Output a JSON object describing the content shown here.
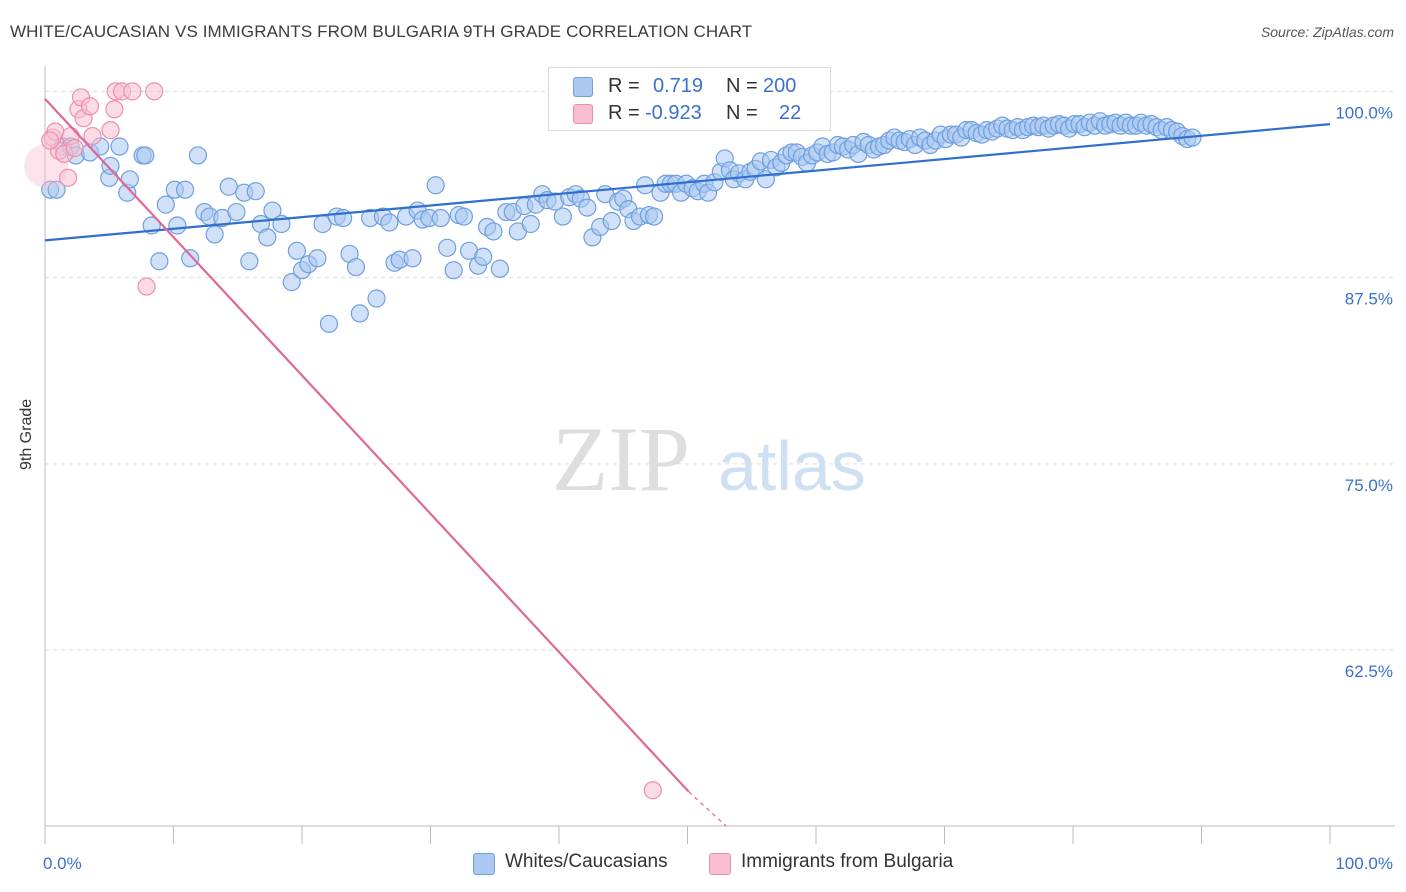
{
  "title": "WHITE/CAUCASIAN VS IMMIGRANTS FROM BULGARIA 9TH GRADE CORRELATION CHART",
  "source": "Source: ZipAtlas.com",
  "watermark": {
    "zip": "ZIP",
    "atlas": "atlas"
  },
  "colors": {
    "blue_fill": "#aac8f0",
    "blue_stroke": "#6f9fe0",
    "blue_line": "#2f6fce",
    "pink_fill": "#f8bfd2",
    "pink_stroke": "#ec8fae",
    "pink_line": "#e06896",
    "tick_label": "#3a70cc",
    "grid": "#d9d9d9"
  },
  "legend": {
    "rows": [
      {
        "r_label": "R =",
        "r_value": "0.719",
        "n_label": "N =",
        "n_value": "200",
        "color": "#aac8f0"
      },
      {
        "r_label": "R =",
        "r_value": "-0.923",
        "n_label": "N =",
        "n_value": "22",
        "color": "#f8bfd2"
      }
    ]
  },
  "bottom_legend": [
    {
      "label": "Whites/Caucasians",
      "color": "#aac8f0"
    },
    {
      "label": "Immigrants from Bulgaria",
      "color": "#f8bfd2"
    }
  ],
  "chart_data": {
    "type": "scatter",
    "title": "WHITE/CAUCASIAN VS IMMIGRANTS FROM BULGARIA 9TH GRADE CORRELATION CHART",
    "xlabel": "",
    "ylabel": "9th Grade",
    "xlim": [
      0,
      100
    ],
    "ylim": [
      50.7,
      101.3
    ],
    "x_tick_labels": [
      {
        "value": 0,
        "label": "0.0%"
      },
      {
        "value": 100,
        "label": "100.0%"
      }
    ],
    "y_tick_labels": [
      {
        "value": 100,
        "label": "100.0%"
      },
      {
        "value": 87.5,
        "label": "87.5%"
      },
      {
        "value": 75,
        "label": "75.0%"
      },
      {
        "value": 62.5,
        "label": "62.5%"
      }
    ],
    "grid": true,
    "legend_position": "top-center",
    "series": [
      {
        "name": "Whites/Caucasians",
        "color": "#aac8f0",
        "trend": {
          "x": [
            0,
            100
          ],
          "y": [
            90.0,
            97.8
          ]
        },
        "points": [
          [
            0.4,
            93.4
          ],
          [
            0.9,
            93.4
          ],
          [
            1.4,
            96.3
          ],
          [
            2.0,
            96.3
          ],
          [
            2.4,
            95.7
          ],
          [
            3.5,
            95.9
          ],
          [
            4.3,
            96.3
          ],
          [
            5.0,
            94.2
          ],
          [
            5.1,
            95.0
          ],
          [
            5.8,
            96.3
          ],
          [
            6.4,
            93.2
          ],
          [
            6.6,
            94.1
          ],
          [
            7.6,
            95.7
          ],
          [
            7.8,
            95.7
          ],
          [
            8.3,
            91.0
          ],
          [
            8.9,
            88.6
          ],
          [
            9.4,
            92.4
          ],
          [
            10.1,
            93.4
          ],
          [
            10.3,
            91.0
          ],
          [
            10.9,
            93.4
          ],
          [
            11.3,
            88.8
          ],
          [
            11.9,
            95.7
          ],
          [
            12.4,
            91.9
          ],
          [
            12.8,
            91.6
          ],
          [
            13.2,
            90.4
          ],
          [
            13.8,
            91.5
          ],
          [
            14.3,
            93.6
          ],
          [
            14.9,
            91.9
          ],
          [
            15.5,
            93.2
          ],
          [
            15.9,
            88.6
          ],
          [
            16.4,
            93.3
          ],
          [
            16.8,
            91.1
          ],
          [
            17.3,
            90.2
          ],
          [
            17.7,
            92.0
          ],
          [
            18.4,
            91.1
          ],
          [
            19.2,
            87.2
          ],
          [
            19.6,
            89.3
          ],
          [
            20.0,
            88.0
          ],
          [
            20.5,
            88.4
          ],
          [
            21.2,
            88.8
          ],
          [
            21.6,
            91.1
          ],
          [
            22.1,
            84.4
          ],
          [
            22.7,
            91.6
          ],
          [
            23.2,
            91.5
          ],
          [
            23.7,
            89.1
          ],
          [
            24.2,
            88.2
          ],
          [
            24.5,
            85.1
          ],
          [
            25.3,
            91.5
          ],
          [
            25.8,
            86.1
          ],
          [
            26.3,
            91.6
          ],
          [
            26.8,
            91.2
          ],
          [
            27.2,
            88.5
          ],
          [
            27.6,
            88.7
          ],
          [
            28.1,
            91.6
          ],
          [
            28.6,
            88.8
          ],
          [
            29.0,
            92.0
          ],
          [
            29.4,
            91.4
          ],
          [
            29.9,
            91.5
          ],
          [
            30.4,
            93.7
          ],
          [
            30.8,
            91.5
          ],
          [
            31.3,
            89.5
          ],
          [
            31.8,
            88.0
          ],
          [
            32.2,
            91.7
          ],
          [
            32.6,
            91.6
          ],
          [
            33.0,
            89.3
          ],
          [
            33.7,
            88.3
          ],
          [
            34.1,
            88.9
          ],
          [
            34.4,
            90.9
          ],
          [
            34.9,
            90.6
          ],
          [
            35.4,
            88.1
          ],
          [
            35.9,
            91.9
          ],
          [
            36.4,
            91.9
          ],
          [
            36.8,
            90.6
          ],
          [
            37.3,
            92.3
          ],
          [
            37.8,
            91.1
          ],
          [
            38.2,
            92.4
          ],
          [
            38.7,
            93.1
          ],
          [
            39.1,
            92.7
          ],
          [
            39.7,
            92.6
          ],
          [
            40.3,
            91.6
          ],
          [
            40.8,
            92.9
          ],
          [
            41.3,
            93.1
          ],
          [
            41.7,
            92.8
          ],
          [
            42.2,
            92.2
          ],
          [
            42.6,
            90.2
          ],
          [
            43.2,
            90.9
          ],
          [
            43.6,
            93.1
          ],
          [
            44.1,
            91.3
          ],
          [
            44.6,
            92.6
          ],
          [
            45.0,
            92.8
          ],
          [
            45.4,
            92.1
          ],
          [
            45.8,
            91.3
          ],
          [
            46.3,
            91.6
          ],
          [
            46.7,
            93.7
          ],
          [
            47.0,
            91.7
          ],
          [
            47.4,
            91.6
          ],
          [
            47.9,
            93.2
          ],
          [
            48.3,
            93.8
          ],
          [
            48.7,
            93.8
          ],
          [
            49.1,
            93.8
          ],
          [
            49.5,
            93.2
          ],
          [
            49.9,
            93.8
          ],
          [
            50.4,
            93.5
          ],
          [
            50.8,
            93.3
          ],
          [
            51.3,
            93.8
          ],
          [
            51.6,
            93.2
          ],
          [
            52.1,
            93.9
          ],
          [
            52.6,
            94.6
          ],
          [
            52.9,
            95.5
          ],
          [
            53.3,
            94.7
          ],
          [
            53.6,
            94.1
          ],
          [
            54.0,
            94.5
          ],
          [
            54.5,
            94.1
          ],
          [
            54.9,
            94.6
          ],
          [
            55.3,
            94.8
          ],
          [
            55.7,
            95.3
          ],
          [
            56.1,
            94.1
          ],
          [
            56.5,
            95.4
          ],
          [
            56.9,
            94.9
          ],
          [
            57.3,
            95.2
          ],
          [
            57.7,
            95.7
          ],
          [
            58.1,
            95.9
          ],
          [
            58.5,
            95.9
          ],
          [
            58.9,
            95.6
          ],
          [
            59.3,
            95.2
          ],
          [
            59.7,
            95.7
          ],
          [
            60.1,
            95.9
          ],
          [
            60.5,
            96.3
          ],
          [
            60.9,
            95.8
          ],
          [
            61.3,
            95.9
          ],
          [
            61.7,
            96.4
          ],
          [
            62.1,
            96.3
          ],
          [
            62.5,
            96.1
          ],
          [
            62.9,
            96.4
          ],
          [
            63.3,
            95.8
          ],
          [
            63.7,
            96.6
          ],
          [
            64.1,
            96.4
          ],
          [
            64.5,
            96.1
          ],
          [
            64.9,
            96.3
          ],
          [
            65.3,
            96.4
          ],
          [
            65.7,
            96.7
          ],
          [
            66.1,
            96.9
          ],
          [
            66.5,
            96.7
          ],
          [
            66.9,
            96.6
          ],
          [
            67.3,
            96.8
          ],
          [
            67.7,
            96.4
          ],
          [
            68.1,
            96.9
          ],
          [
            68.5,
            96.7
          ],
          [
            68.9,
            96.4
          ],
          [
            69.3,
            96.7
          ],
          [
            69.7,
            97.1
          ],
          [
            70.1,
            96.8
          ],
          [
            70.5,
            97.1
          ],
          [
            70.9,
            97.1
          ],
          [
            71.3,
            96.9
          ],
          [
            71.7,
            97.4
          ],
          [
            72.1,
            97.4
          ],
          [
            72.5,
            97.2
          ],
          [
            72.9,
            97.1
          ],
          [
            73.3,
            97.4
          ],
          [
            73.7,
            97.3
          ],
          [
            74.1,
            97.5
          ],
          [
            74.5,
            97.7
          ],
          [
            74.9,
            97.5
          ],
          [
            75.3,
            97.4
          ],
          [
            75.7,
            97.6
          ],
          [
            76.1,
            97.4
          ],
          [
            76.5,
            97.6
          ],
          [
            76.9,
            97.7
          ],
          [
            77.3,
            97.6
          ],
          [
            77.7,
            97.7
          ],
          [
            78.1,
            97.5
          ],
          [
            78.5,
            97.7
          ],
          [
            78.9,
            97.8
          ],
          [
            79.3,
            97.7
          ],
          [
            79.7,
            97.5
          ],
          [
            80.1,
            97.8
          ],
          [
            80.5,
            97.8
          ],
          [
            80.9,
            97.6
          ],
          [
            81.3,
            97.9
          ],
          [
            81.7,
            97.7
          ],
          [
            82.1,
            98.0
          ],
          [
            82.5,
            97.7
          ],
          [
            82.9,
            97.8
          ],
          [
            83.3,
            97.9
          ],
          [
            83.7,
            97.7
          ],
          [
            84.1,
            97.9
          ],
          [
            84.5,
            97.7
          ],
          [
            84.9,
            97.7
          ],
          [
            85.3,
            97.9
          ],
          [
            85.7,
            97.7
          ],
          [
            86.1,
            97.8
          ],
          [
            86.5,
            97.6
          ],
          [
            86.9,
            97.4
          ],
          [
            87.3,
            97.6
          ],
          [
            87.7,
            97.4
          ],
          [
            88.1,
            97.3
          ],
          [
            88.5,
            97.0
          ],
          [
            88.9,
            96.8
          ],
          [
            89.3,
            96.9
          ]
        ]
      },
      {
        "name": "Immigrants from Bulgaria",
        "color": "#f8bfd2",
        "trend": {
          "x": [
            0,
            50.1
          ],
          "y": [
            99.5,
            53.0
          ]
        },
        "trend_dashed": {
          "x": [
            50.1,
            53
          ],
          "y": [
            53.0,
            50.7
          ]
        },
        "points": [
          [
            0.1,
            95.0
          ],
          [
            0.6,
            96.9
          ],
          [
            0.8,
            97.3
          ],
          [
            1.1,
            96.0
          ],
          [
            1.5,
            95.8
          ],
          [
            1.8,
            94.2
          ],
          [
            2.0,
            97.0
          ],
          [
            2.3,
            96.2
          ],
          [
            2.6,
            98.8
          ],
          [
            2.8,
            99.6
          ],
          [
            3.0,
            98.2
          ],
          [
            3.5,
            99.0
          ],
          [
            3.7,
            97.0
          ],
          [
            5.1,
            97.4
          ],
          [
            5.4,
            98.8
          ],
          [
            5.5,
            100.0
          ],
          [
            6.0,
            100.0
          ],
          [
            6.8,
            100.0
          ],
          [
            8.5,
            100.0
          ],
          [
            7.9,
            86.9
          ],
          [
            47.3,
            53.1
          ],
          [
            0.4,
            96.7
          ]
        ]
      }
    ]
  }
}
